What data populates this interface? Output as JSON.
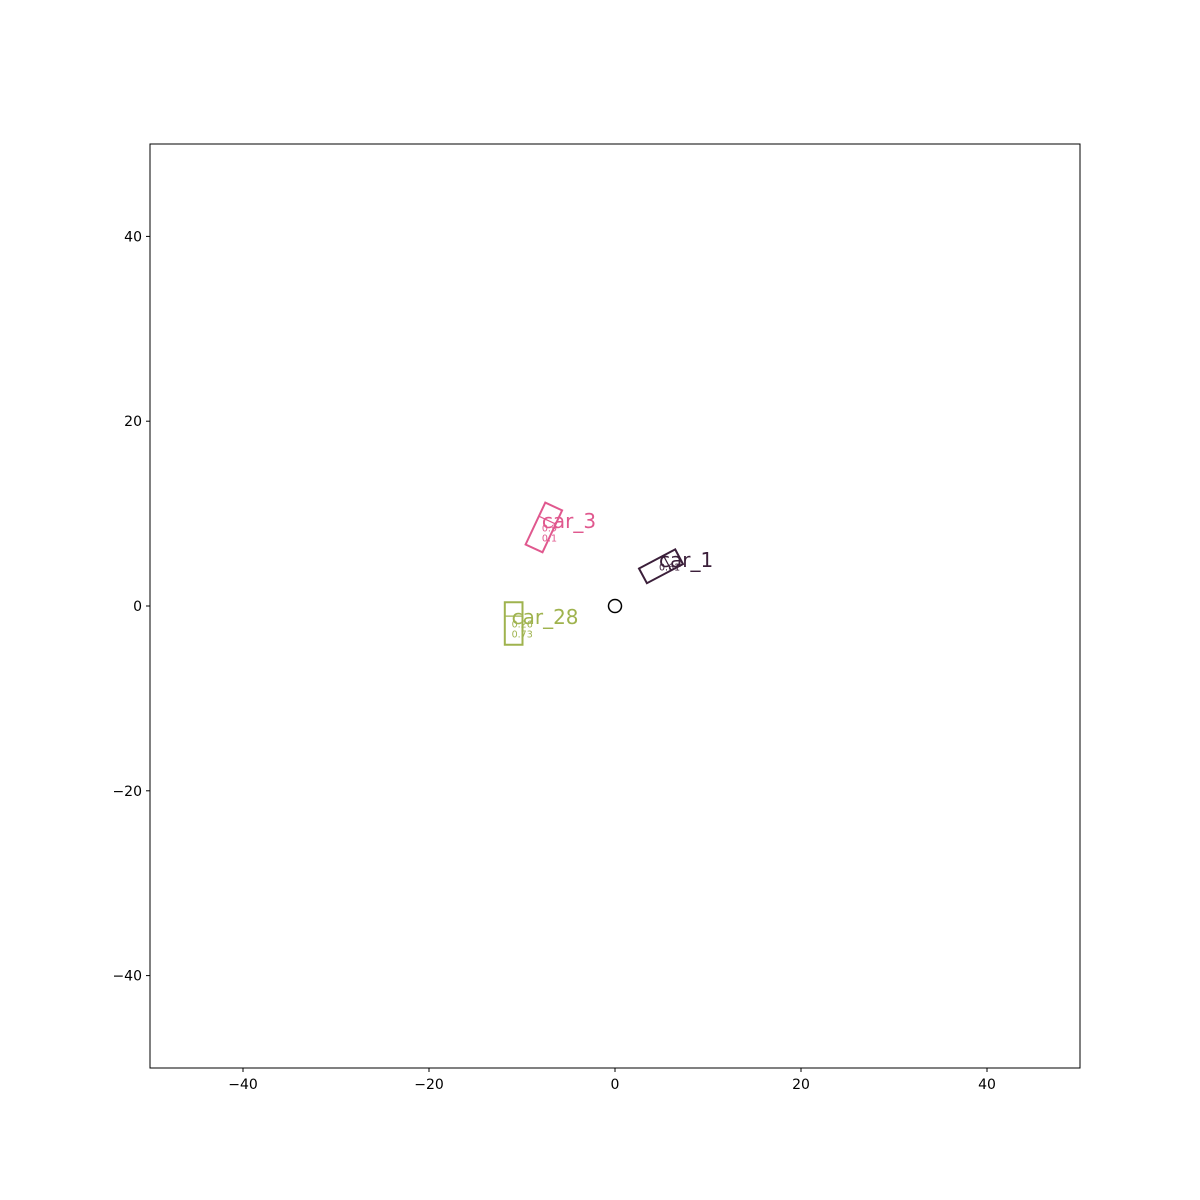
{
  "chart_data": {
    "type": "scatter",
    "title": "",
    "xlabel": "",
    "ylabel": "",
    "xlim": [
      -50,
      50
    ],
    "ylim": [
      -50,
      50
    ],
    "grid": false,
    "x_ticks": [
      {
        "value": -40,
        "label": "−40"
      },
      {
        "value": -20,
        "label": "−20"
      },
      {
        "value": 0,
        "label": "0"
      },
      {
        "value": 20,
        "label": "20"
      },
      {
        "value": 40,
        "label": "40"
      }
    ],
    "y_ticks": [
      {
        "value": -40,
        "label": "−40"
      },
      {
        "value": -20,
        "label": "−20"
      },
      {
        "value": 0,
        "label": "0"
      },
      {
        "value": 20,
        "label": "20"
      },
      {
        "value": 40,
        "label": "40"
      }
    ],
    "ego": {
      "x": 0,
      "y": 0,
      "color": "#000000"
    },
    "objects": [
      {
        "label": "car_1",
        "color": "#3b1f3a",
        "center": [
          4.95,
          4.3
        ],
        "length": 4.4,
        "width": 1.8,
        "heading_deg": 28,
        "sub_labels": [
          "0.61"
        ]
      },
      {
        "label": "car_3",
        "color": "#e0588e",
        "center": [
          -7.65,
          8.5
        ],
        "length": 5.0,
        "width": 2.0,
        "heading_deg": 65,
        "sub_labels": [
          "0.9",
          "0.1"
        ]
      },
      {
        "label": "car_28",
        "color": "#9fb34e",
        "center": [
          -10.9,
          -1.9
        ],
        "length": 4.6,
        "width": 1.9,
        "heading_deg": 90,
        "sub_labels": [
          "0.26",
          "0.73"
        ]
      }
    ]
  }
}
